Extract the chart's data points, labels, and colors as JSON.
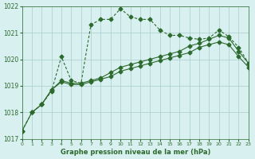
{
  "title": "Graphe pression niveau de la mer (hPa)",
  "bg_color": "#d8f0f0",
  "grid_color": "#aacccc",
  "line_color": "#2d6a2d",
  "xlim": [
    0,
    23
  ],
  "ylim": [
    1017,
    1022
  ],
  "yticks": [
    1017,
    1018,
    1019,
    1020,
    1021,
    1022
  ],
  "xticks": [
    0,
    1,
    2,
    3,
    4,
    5,
    6,
    7,
    8,
    9,
    10,
    11,
    12,
    13,
    14,
    15,
    16,
    17,
    18,
    19,
    20,
    21,
    22,
    23
  ],
  "series1_x": [
    0,
    1,
    2,
    3,
    4,
    5,
    6,
    7,
    8,
    9,
    10,
    11,
    12,
    13,
    14,
    15,
    16,
    17,
    18,
    19,
    20,
    21,
    22,
    23
  ],
  "series1_y": [
    1017.3,
    1018.0,
    1018.3,
    1018.8,
    1020.1,
    1019.2,
    1019.1,
    1021.3,
    1021.5,
    1021.5,
    1021.9,
    1021.6,
    1021.5,
    1021.5,
    1021.1,
    1020.9,
    1020.9,
    1020.8,
    1020.75,
    1020.8,
    1021.1,
    1020.85,
    1020.45,
    1019.85
  ],
  "series2_x": [
    0,
    1,
    2,
    3,
    4,
    5,
    6,
    7,
    8,
    9,
    10,
    11,
    12,
    13,
    14,
    15,
    16,
    17,
    18,
    19,
    20,
    21,
    22,
    23
  ],
  "series2_y": [
    1017.3,
    1018.0,
    1018.3,
    1018.85,
    1019.2,
    1019.1,
    1019.1,
    1019.2,
    1019.3,
    1019.5,
    1019.7,
    1019.8,
    1019.9,
    1020.0,
    1020.1,
    1020.2,
    1020.3,
    1020.5,
    1020.6,
    1020.75,
    1020.9,
    1020.8,
    1020.3,
    1019.85
  ],
  "series3_x": [
    1,
    2,
    3,
    4,
    5,
    6,
    7,
    8,
    9,
    10,
    11,
    12,
    13,
    14,
    15,
    16,
    17,
    18,
    19,
    20,
    21,
    22,
    23
  ],
  "series3_y": [
    1018.0,
    1018.3,
    1018.85,
    1019.15,
    1019.05,
    1019.05,
    1019.15,
    1019.25,
    1019.35,
    1019.55,
    1019.65,
    1019.75,
    1019.85,
    1019.95,
    1020.05,
    1020.15,
    1020.25,
    1020.45,
    1020.55,
    1020.65,
    1020.55,
    1020.1,
    1019.7
  ]
}
